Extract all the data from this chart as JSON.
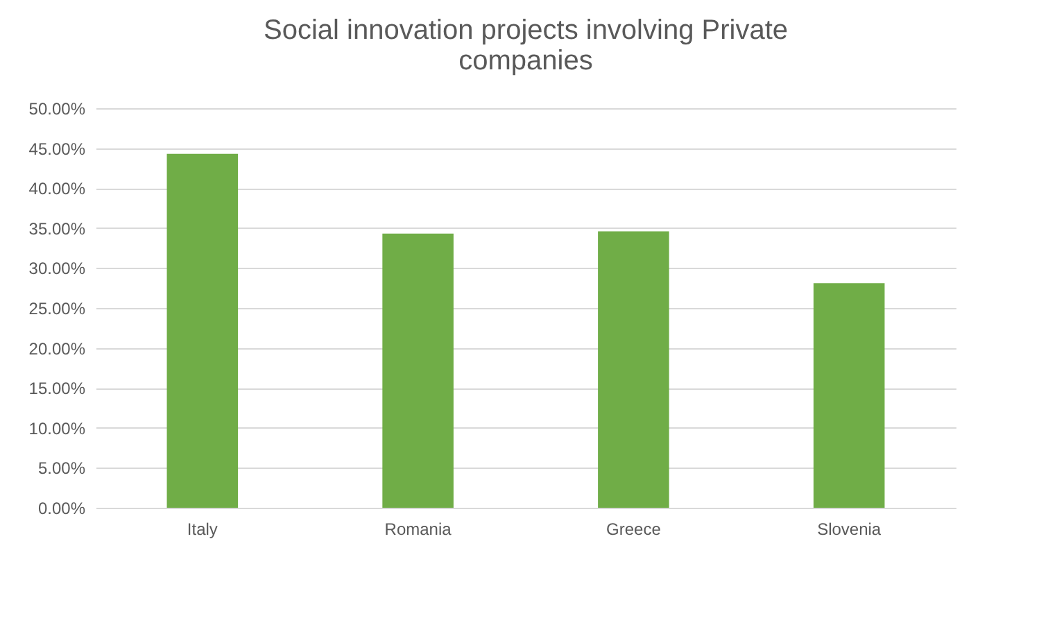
{
  "chart_data": {
    "type": "bar",
    "title": [
      "Social innovation projects involving Private",
      "companies"
    ],
    "categories": [
      "Italy",
      "Romania",
      "Greece",
      "Slovenia"
    ],
    "values": [
      44.3,
      34.3,
      34.6,
      28.1
    ],
    "color": "#70ad47",
    "ylim": [
      0,
      50
    ],
    "yticks": [
      {
        "value": 0,
        "label": "0.00%"
      },
      {
        "value": 5,
        "label": "5.00%"
      },
      {
        "value": 10,
        "label": "10.00%"
      },
      {
        "value": 15,
        "label": "15.00%"
      },
      {
        "value": 20,
        "label": "20.00%"
      },
      {
        "value": 25,
        "label": "25.00%"
      },
      {
        "value": 30,
        "label": "30.00%"
      },
      {
        "value": 35,
        "label": "35.00%"
      },
      {
        "value": 40,
        "label": "40.00%"
      },
      {
        "value": 45,
        "label": "45.00%"
      },
      {
        "value": 50,
        "label": "50.00%"
      }
    ],
    "grid": "y",
    "legend": false
  }
}
